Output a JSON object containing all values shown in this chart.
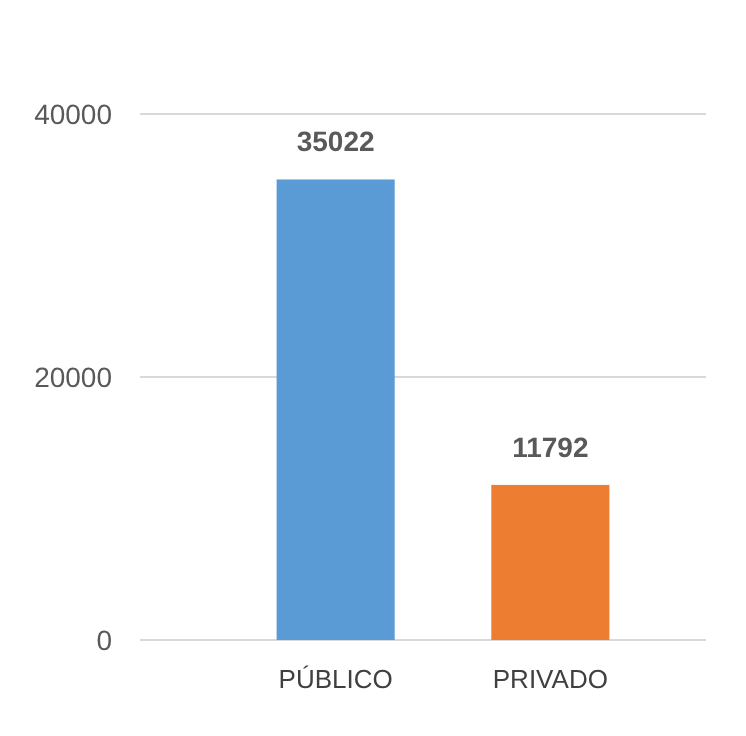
{
  "chart_data": {
    "type": "bar",
    "categories": [
      "PÚBLICO",
      "PRIVADO"
    ],
    "values": [
      35022,
      11792
    ],
    "colors": [
      "#5b9bd5",
      "#ed7d31"
    ],
    "ylim": [
      0,
      40000
    ],
    "yticks": [
      0,
      20000,
      40000
    ],
    "grid": "y",
    "data_labels": true
  }
}
